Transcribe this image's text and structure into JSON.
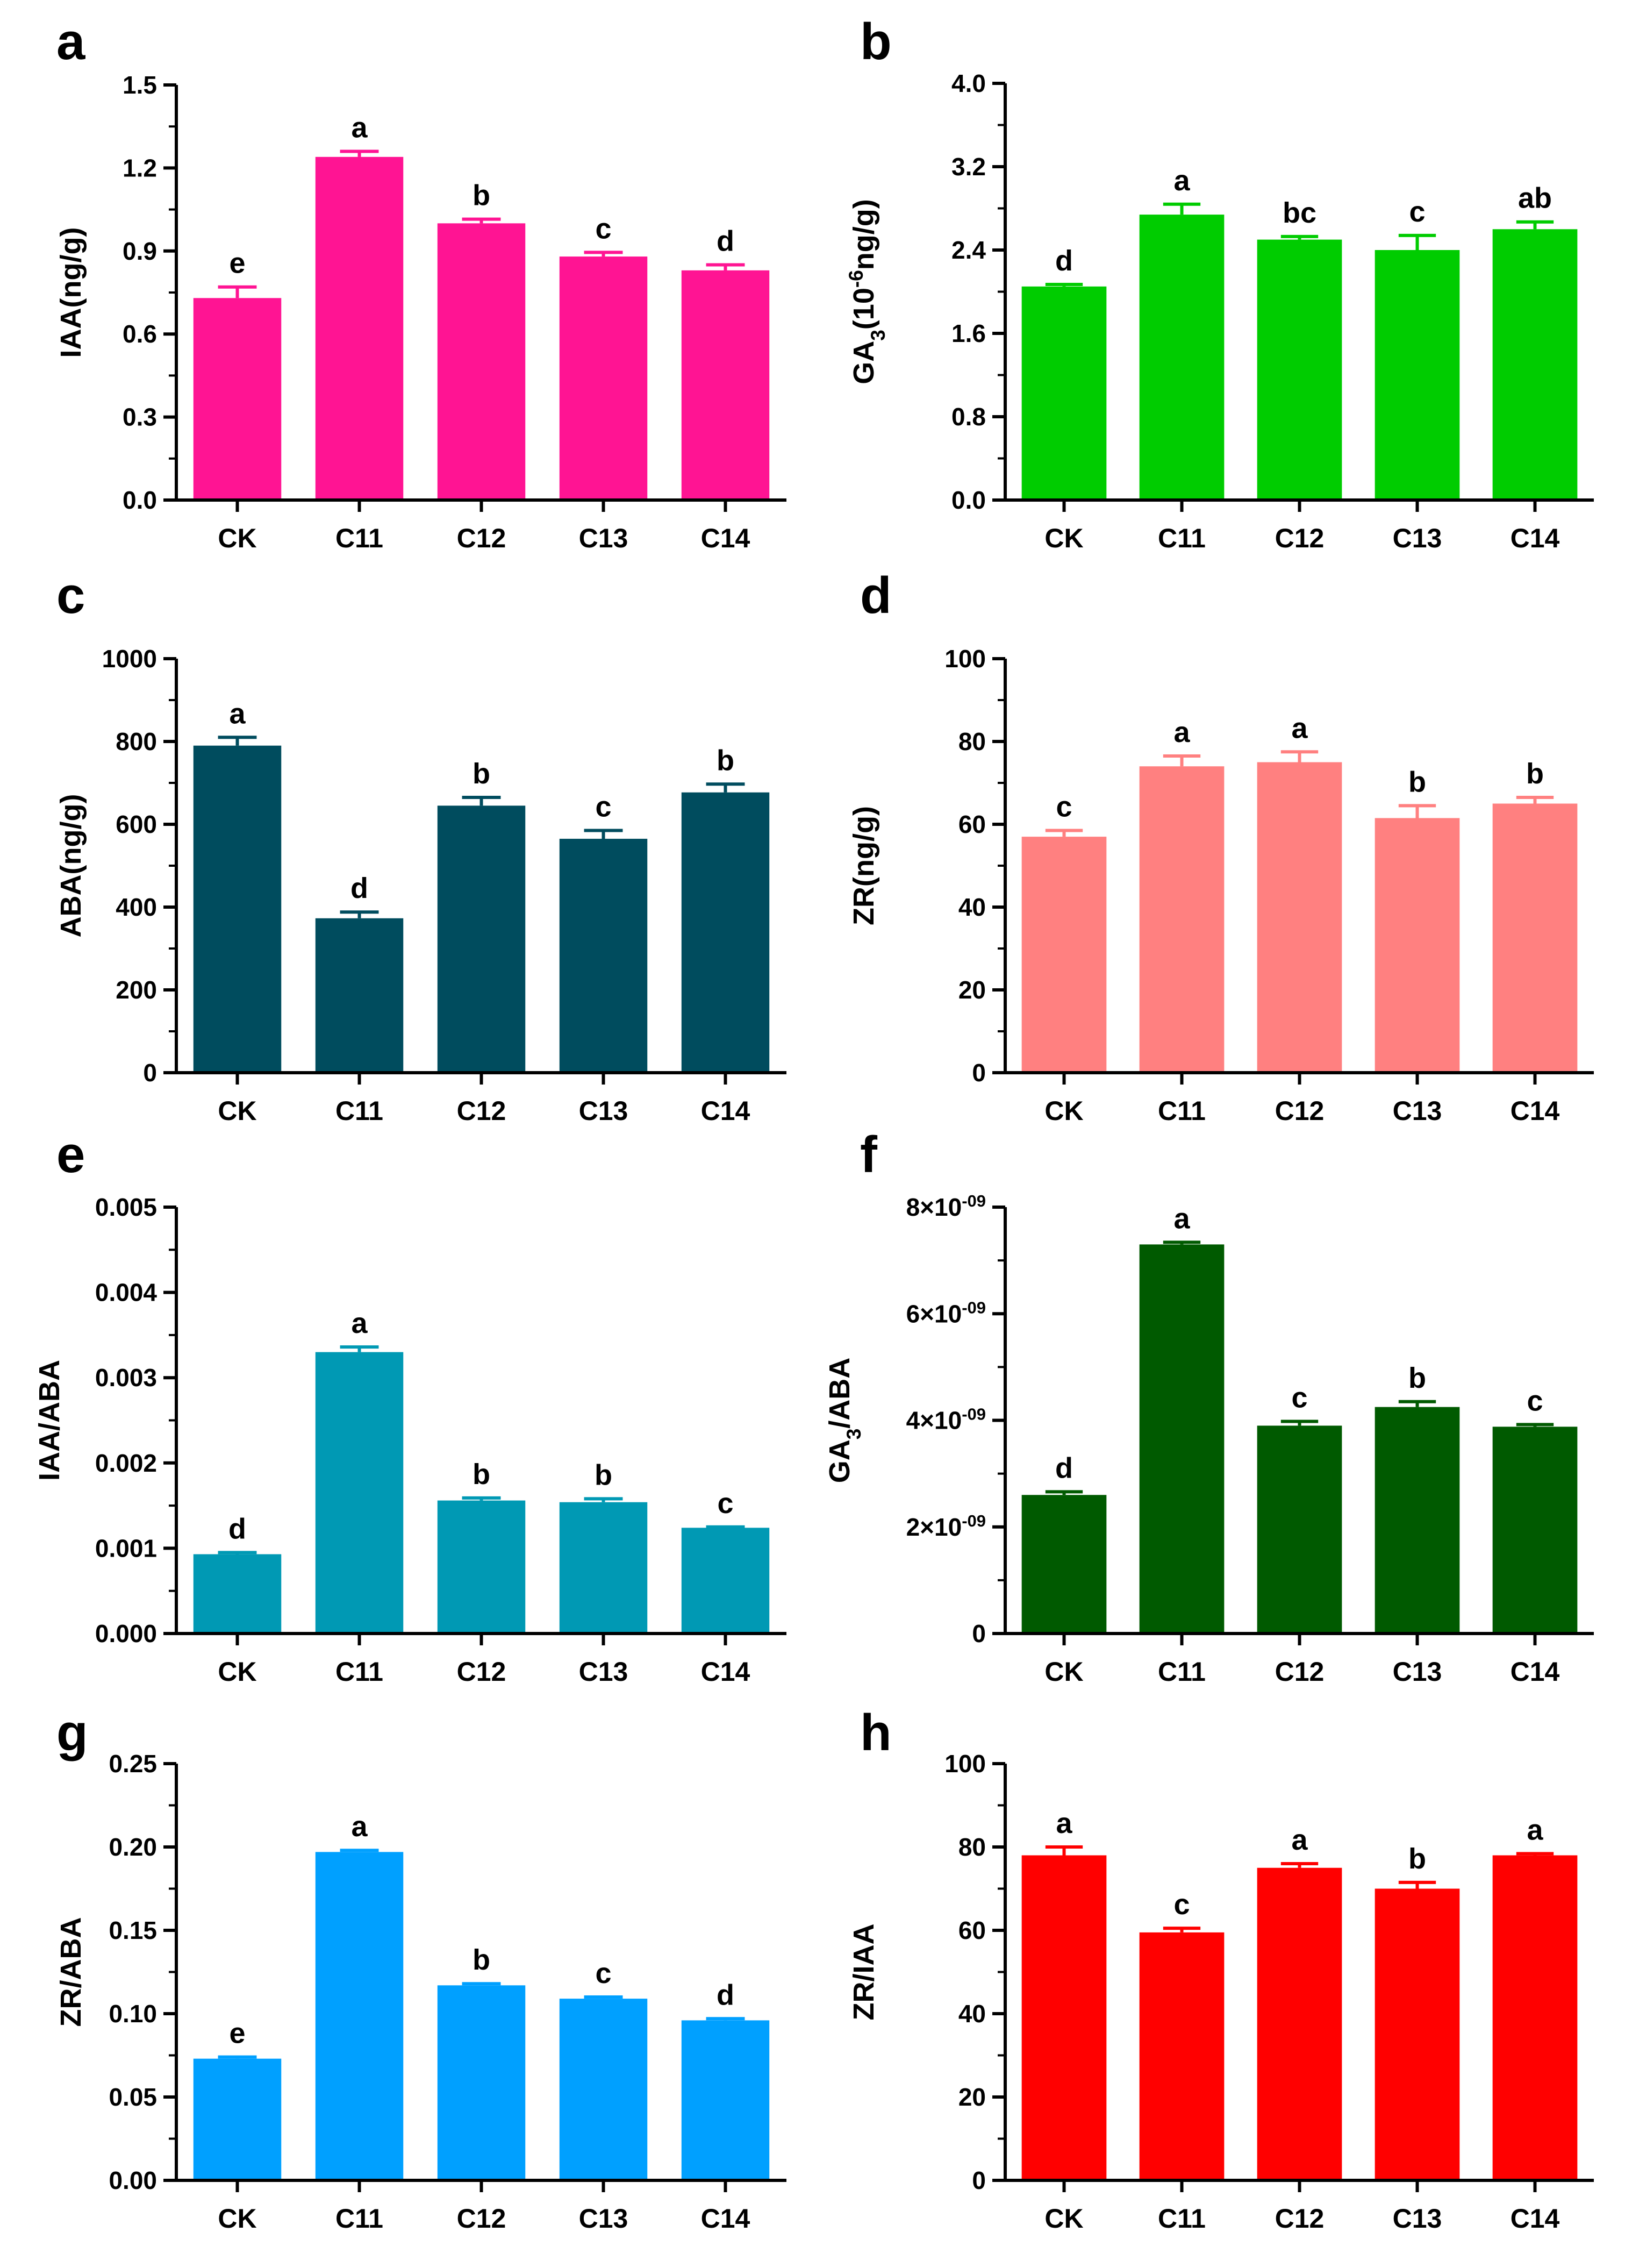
{
  "chart_data": [
    {
      "type": "bar",
      "panel": "a",
      "ylabel": "IAA(ng/g)",
      "ylabel_parts": [
        {
          "t": "IAA(ng/g)",
          "s": ""
        }
      ],
      "categories": [
        "CK",
        "C11",
        "C12",
        "C13",
        "C14"
      ],
      "values": [
        0.73,
        1.24,
        1.0,
        0.88,
        0.83
      ],
      "errors": [
        0.04,
        0.02,
        0.015,
        0.015,
        0.02
      ],
      "letters": [
        "e",
        "a",
        "b",
        "c",
        "d"
      ],
      "ylim": [
        0,
        1.5
      ],
      "ticks": [
        0.0,
        0.3,
        0.6,
        0.9,
        1.2,
        1.5
      ],
      "tick_labels": [
        "0.0",
        "0.3",
        "0.6",
        "0.9",
        "1.2",
        "1.5"
      ],
      "color": "#ff1493"
    },
    {
      "type": "bar",
      "panel": "b",
      "ylabel": "GA3(10-6ng/g)",
      "ylabel_parts": [
        {
          "t": "GA",
          "s": ""
        },
        {
          "t": "3",
          "s": "sub"
        },
        {
          "t": "(10",
          "s": ""
        },
        {
          "t": "-6",
          "s": "sup"
        },
        {
          "t": "ng/g)",
          "s": ""
        }
      ],
      "categories": [
        "CK",
        "C11",
        "C12",
        "C13",
        "C14"
      ],
      "values": [
        2.05,
        2.74,
        2.5,
        2.4,
        2.6
      ],
      "errors": [
        0.02,
        0.1,
        0.03,
        0.14,
        0.07
      ],
      "letters": [
        "d",
        "a",
        "bc",
        "c",
        "ab"
      ],
      "ylim": [
        0,
        4.0
      ],
      "ticks": [
        0.0,
        0.8,
        1.6,
        2.4,
        3.2,
        4.0
      ],
      "tick_labels": [
        "0.0",
        "0.8",
        "1.6",
        "2.4",
        "3.2",
        "4.0"
      ],
      "color": "#00cc00"
    },
    {
      "type": "bar",
      "panel": "c",
      "ylabel": "ABA(ng/g)",
      "ylabel_parts": [
        {
          "t": "ABA(ng/g)",
          "s": ""
        }
      ],
      "categories": [
        "CK",
        "C11",
        "C12",
        "C13",
        "C14"
      ],
      "values": [
        790,
        373,
        645,
        565,
        677
      ],
      "errors": [
        20,
        15,
        20,
        20,
        20
      ],
      "letters": [
        "a",
        "d",
        "b",
        "c",
        "b"
      ],
      "ylim": [
        0,
        1000
      ],
      "ticks": [
        0,
        200,
        400,
        600,
        800,
        1000
      ],
      "tick_labels": [
        "0",
        "200",
        "400",
        "600",
        "800",
        "1000"
      ],
      "color": "#004c5e"
    },
    {
      "type": "bar",
      "panel": "d",
      "ylabel": "ZR(ng/g)",
      "ylabel_parts": [
        {
          "t": "ZR(ng/g)",
          "s": ""
        }
      ],
      "categories": [
        "CK",
        "C11",
        "C12",
        "C13",
        "C14"
      ],
      "values": [
        57,
        74,
        75,
        61.5,
        65
      ],
      "errors": [
        1.5,
        2.5,
        2.5,
        3,
        1.5
      ],
      "letters": [
        "c",
        "a",
        "a",
        "b",
        "b"
      ],
      "ylim": [
        0,
        100
      ],
      "ticks": [
        0,
        20,
        40,
        60,
        80,
        100
      ],
      "tick_labels": [
        "0",
        "20",
        "40",
        "60",
        "80",
        "100"
      ],
      "color": "#ff8080"
    },
    {
      "type": "bar",
      "panel": "e",
      "ylabel": "IAA/ABA",
      "ylabel_parts": [
        {
          "t": "IAA/ABA",
          "s": ""
        }
      ],
      "categories": [
        "CK",
        "C11",
        "C12",
        "C13",
        "C14"
      ],
      "values": [
        0.00093,
        0.0033,
        0.00156,
        0.00154,
        0.00124
      ],
      "errors": [
        2e-05,
        6e-05,
        3e-05,
        4e-05,
        1e-05
      ],
      "letters": [
        "d",
        "a",
        "b",
        "b",
        "c"
      ],
      "ylim": [
        0,
        0.005
      ],
      "ticks": [
        0,
        0.001,
        0.002,
        0.003,
        0.004,
        0.005
      ],
      "tick_labels": [
        "0.000",
        "0.001",
        "0.002",
        "0.003",
        "0.004",
        "0.005"
      ],
      "color": "#0099b4"
    },
    {
      "type": "bar",
      "panel": "f",
      "ylabel": "GA3/ABA",
      "ylabel_parts": [
        {
          "t": "GA",
          "s": ""
        },
        {
          "t": "3",
          "s": "sub"
        },
        {
          "t": "/ABA",
          "s": ""
        }
      ],
      "categories": [
        "CK",
        "C11",
        "C12",
        "C13",
        "C14"
      ],
      "values": [
        2.6e-09,
        7.3e-09,
        3.9e-09,
        4.25e-09,
        3.88e-09
      ],
      "errors": [
        6e-11,
        4e-11,
        8e-11,
        1e-10,
        4e-11
      ],
      "letters": [
        "d",
        "a",
        "c",
        "b",
        "c"
      ],
      "ylim": [
        0,
        8e-09
      ],
      "ticks": [
        0,
        2e-09,
        4e-09,
        6e-09,
        8e-09
      ],
      "tick_labels": [
        "0",
        "2×10-09",
        "4×10-09",
        "6×10-09",
        "8×10-09"
      ],
      "tick_label_parts": [
        [
          {
            "t": "0",
            "s": ""
          }
        ],
        [
          {
            "t": "2×10",
            "s": ""
          },
          {
            "t": "-09",
            "s": "sup"
          }
        ],
        [
          {
            "t": "4×10",
            "s": ""
          },
          {
            "t": "-09",
            "s": "sup"
          }
        ],
        [
          {
            "t": "6×10",
            "s": ""
          },
          {
            "t": "-09",
            "s": "sup"
          }
        ],
        [
          {
            "t": "8×10",
            "s": ""
          },
          {
            "t": "-09",
            "s": "sup"
          }
        ]
      ],
      "color": "#005a00"
    },
    {
      "type": "bar",
      "panel": "g",
      "ylabel": "ZR/ABA",
      "ylabel_parts": [
        {
          "t": "ZR/ABA",
          "s": ""
        }
      ],
      "categories": [
        "CK",
        "C11",
        "C12",
        "C13",
        "C14"
      ],
      "values": [
        0.073,
        0.197,
        0.117,
        0.109,
        0.096
      ],
      "errors": [
        0.001,
        0.001,
        0.001,
        0.001,
        0.001
      ],
      "letters": [
        "e",
        "a",
        "b",
        "c",
        "d"
      ],
      "ylim": [
        0,
        0.25
      ],
      "ticks": [
        0,
        0.05,
        0.1,
        0.15,
        0.2,
        0.25
      ],
      "tick_labels": [
        "0.00",
        "0.05",
        "0.10",
        "0.15",
        "0.20",
        "0.25"
      ],
      "color": "#00a0ff"
    },
    {
      "type": "bar",
      "panel": "h",
      "ylabel": "ZR/IAA",
      "ylabel_parts": [
        {
          "t": "ZR/IAA",
          "s": ""
        }
      ],
      "categories": [
        "CK",
        "C11",
        "C12",
        "C13",
        "C14"
      ],
      "values": [
        78,
        59.5,
        75,
        70,
        78
      ],
      "errors": [
        2,
        1,
        1,
        1.5,
        0.4
      ],
      "letters": [
        "a",
        "c",
        "a",
        "b",
        "a"
      ],
      "ylim": [
        0,
        100
      ],
      "ticks": [
        0,
        20,
        40,
        60,
        80,
        100
      ],
      "tick_labels": [
        "0",
        "20",
        "40",
        "60",
        "80",
        "100"
      ],
      "color": "#ff0000"
    }
  ]
}
